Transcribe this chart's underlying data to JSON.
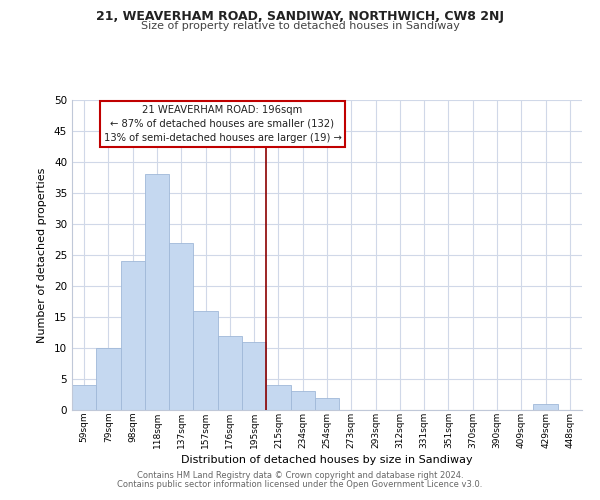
{
  "title": "21, WEAVERHAM ROAD, SANDIWAY, NORTHWICH, CW8 2NJ",
  "subtitle": "Size of property relative to detached houses in Sandiway",
  "xlabel": "Distribution of detached houses by size in Sandiway",
  "ylabel": "Number of detached properties",
  "bar_labels": [
    "59sqm",
    "79sqm",
    "98sqm",
    "118sqm",
    "137sqm",
    "157sqm",
    "176sqm",
    "195sqm",
    "215sqm",
    "234sqm",
    "254sqm",
    "273sqm",
    "293sqm",
    "312sqm",
    "331sqm",
    "351sqm",
    "370sqm",
    "390sqm",
    "409sqm",
    "429sqm",
    "448sqm"
  ],
  "bar_values": [
    4,
    10,
    24,
    38,
    27,
    16,
    12,
    11,
    4,
    3,
    2,
    0,
    0,
    0,
    0,
    0,
    0,
    0,
    0,
    1,
    0
  ],
  "bar_color": "#c5d8f0",
  "bar_edge_color": "#a0b8d8",
  "reference_line_x": 7,
  "reference_line_color": "#8b0000",
  "ylim": [
    0,
    50
  ],
  "yticks": [
    0,
    5,
    10,
    15,
    20,
    25,
    30,
    35,
    40,
    45,
    50
  ],
  "annotation_title": "21 WEAVERHAM ROAD: 196sqm",
  "annotation_line1": "← 87% of detached houses are smaller (132)",
  "annotation_line2": "13% of semi-detached houses are larger (19) →",
  "annotation_box_color": "#ffffff",
  "annotation_box_edge_color": "#c00000",
  "footer_line1": "Contains HM Land Registry data © Crown copyright and database right 2024.",
  "footer_line2": "Contains public sector information licensed under the Open Government Licence v3.0.",
  "bg_color": "#ffffff",
  "grid_color": "#d0d8e8"
}
